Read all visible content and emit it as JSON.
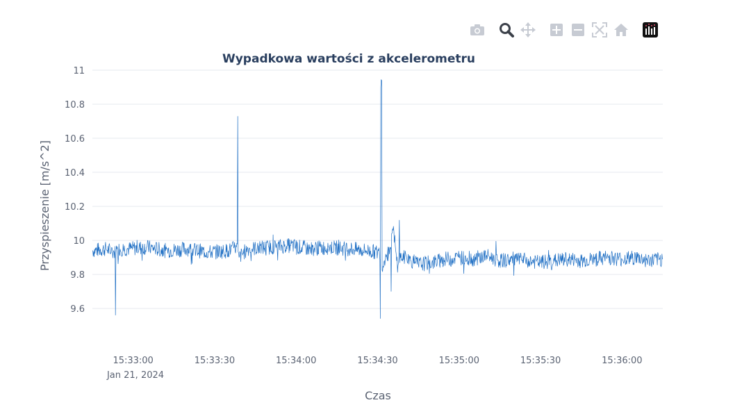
{
  "toolbar": {
    "buttons": [
      {
        "name": "camera-icon"
      },
      {
        "name": "zoom-icon"
      },
      {
        "name": "pan-icon"
      },
      {
        "name": "zoom-in-icon"
      },
      {
        "name": "zoom-out-icon"
      },
      {
        "name": "autoscale-icon"
      },
      {
        "name": "reset-axes-icon"
      },
      {
        "name": "plotly-logo-icon"
      }
    ]
  },
  "colors": {
    "line": "#1f6fc4",
    "grid": "#e6e9ef",
    "text": "#5a6272",
    "title": "#2a3f5f"
  },
  "chart_data": {
    "type": "line",
    "title": "Wypadkowa wartości z akcelerometru",
    "xlabel": "Czas",
    "ylabel": "Przyspieszenie [m/s^2]",
    "x_range": [
      "2024-01-21 15:32:45",
      "2024-01-21 15:36:15"
    ],
    "ylim": [
      9.47,
      11.0
    ],
    "y_ticks": [
      "9.6",
      "9.8",
      "10",
      "10.2",
      "10.4",
      "10.6",
      "10.8",
      "11"
    ],
    "x_ticks": [
      "15:33:00",
      "15:33:30",
      "15:34:00",
      "15:34:30",
      "15:35:00",
      "15:35:30",
      "15:36:00"
    ],
    "x_tick_sublabel": "Jan 21, 2024",
    "grid": true,
    "legend": "none",
    "series": [
      {
        "x": [
          "15:32:45",
          "15:32:50",
          "15:32:53",
          "15:32:53.5",
          "15:32:54",
          "15:32:58",
          "15:33:05",
          "15:33:12",
          "15:33:20",
          "15:33:28",
          "15:33:35",
          "15:33:38",
          "15:33:38.5",
          "15:33:39",
          "15:33:42",
          "15:33:50",
          "15:33:58",
          "15:34:05",
          "15:34:12",
          "15:34:20",
          "15:34:26",
          "15:34:30",
          "15:34:31",
          "15:34:31.5",
          "15:34:32",
          "15:34:33",
          "15:34:35",
          "15:34:36",
          "15:34:37",
          "15:34:38",
          "15:34:40",
          "15:34:45",
          "15:34:50",
          "15:34:55",
          "15:35:00",
          "15:35:05",
          "15:35:10",
          "15:35:15",
          "15:35:20",
          "15:35:25",
          "15:35:30",
          "15:35:35",
          "15:35:40",
          "15:35:45",
          "15:35:50",
          "15:35:55",
          "15:36:00",
          "15:36:05",
          "15:36:10",
          "15:36:15"
        ],
        "y": [
          9.94,
          9.95,
          9.93,
          9.56,
          9.95,
          9.95,
          9.96,
          9.94,
          9.95,
          9.93,
          9.94,
          9.96,
          10.73,
          9.9,
          9.95,
          9.96,
          9.97,
          9.95,
          9.96,
          9.95,
          9.94,
          9.93,
          9.54,
          10.94,
          9.85,
          9.92,
          9.7,
          10.05,
          9.88,
          10.12,
          9.9,
          9.86,
          9.87,
          9.89,
          9.9,
          9.89,
          9.91,
          9.88,
          9.89,
          9.88,
          9.87,
          9.88,
          9.89,
          9.88,
          9.89,
          9.9,
          9.89,
          9.9,
          9.88,
          9.89
        ]
      }
    ]
  }
}
